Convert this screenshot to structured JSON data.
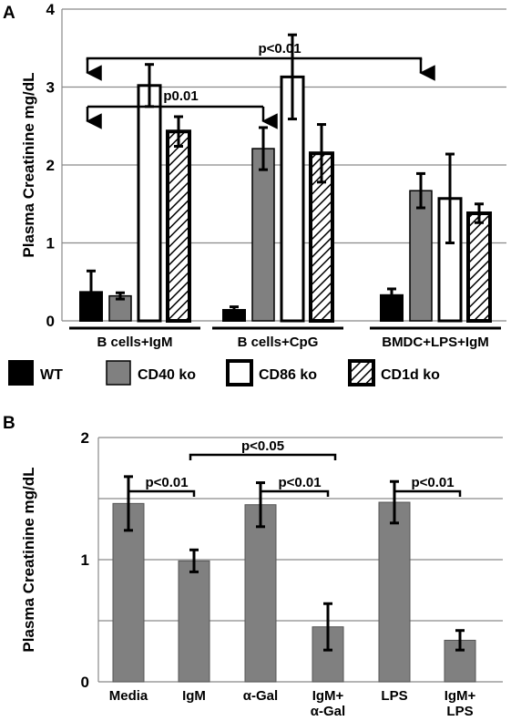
{
  "colors": {
    "wt": "#000000",
    "cd40": "#808080",
    "cd86": "#ffffff",
    "cd1d": "hatched",
    "bar_gray": "#808080",
    "grid": "#8a8a8a"
  },
  "chart_data": [
    {
      "panel": "A",
      "type": "bar",
      "ylabel": "Plasma Creatinine mg/dL",
      "ylim": [
        0,
        4
      ],
      "yticks": [
        "0",
        "1",
        "2",
        "3",
        "4"
      ],
      "grid": true,
      "legend_position": "bottom",
      "categories": [
        "B cells+IgM",
        "B cells+CpG",
        "BMDC+LPS+IgM"
      ],
      "series": [
        {
          "name": "WT",
          "values": [
            0.37,
            0.14,
            0.33
          ],
          "errors": [
            0.27,
            0.04,
            0.08
          ]
        },
        {
          "name": "CD40 ko",
          "values": [
            0.32,
            2.21,
            1.67
          ],
          "errors": [
            0.04,
            0.27,
            0.22
          ]
        },
        {
          "name": "CD86 ko",
          "values": [
            3.02,
            3.13,
            1.57
          ],
          "errors": [
            0.27,
            0.54,
            0.57
          ]
        },
        {
          "name": "CD1d ko",
          "values": [
            2.43,
            2.15,
            1.38
          ],
          "errors": [
            0.19,
            0.37,
            0.12
          ]
        }
      ],
      "annotations": [
        "p<0.01",
        "p0.01"
      ]
    },
    {
      "panel": "B",
      "type": "bar",
      "ylabel": "Plasma Creatinine mg/dL",
      "ylim": [
        0,
        2
      ],
      "yticks": [
        "0",
        "1",
        "2"
      ],
      "grid": true,
      "categories": [
        "Media",
        "IgM",
        "α-Gal",
        "IgM+ α-Gal",
        "LPS",
        "IgM+ LPS"
      ],
      "category_lines": [
        [
          "Media"
        ],
        [
          "IgM"
        ],
        [
          "α-Gal"
        ],
        [
          "IgM+",
          "α-Gal"
        ],
        [
          "LPS"
        ],
        [
          "IgM+",
          "LPS"
        ]
      ],
      "values": [
        1.46,
        0.99,
        1.45,
        0.45,
        1.47,
        0.34
      ],
      "errors": [
        0.22,
        0.09,
        0.18,
        0.19,
        0.17,
        0.08
      ],
      "annotations": [
        "p<0.01",
        "p<0.05",
        "p<0.01",
        "p<0.01"
      ]
    }
  ]
}
